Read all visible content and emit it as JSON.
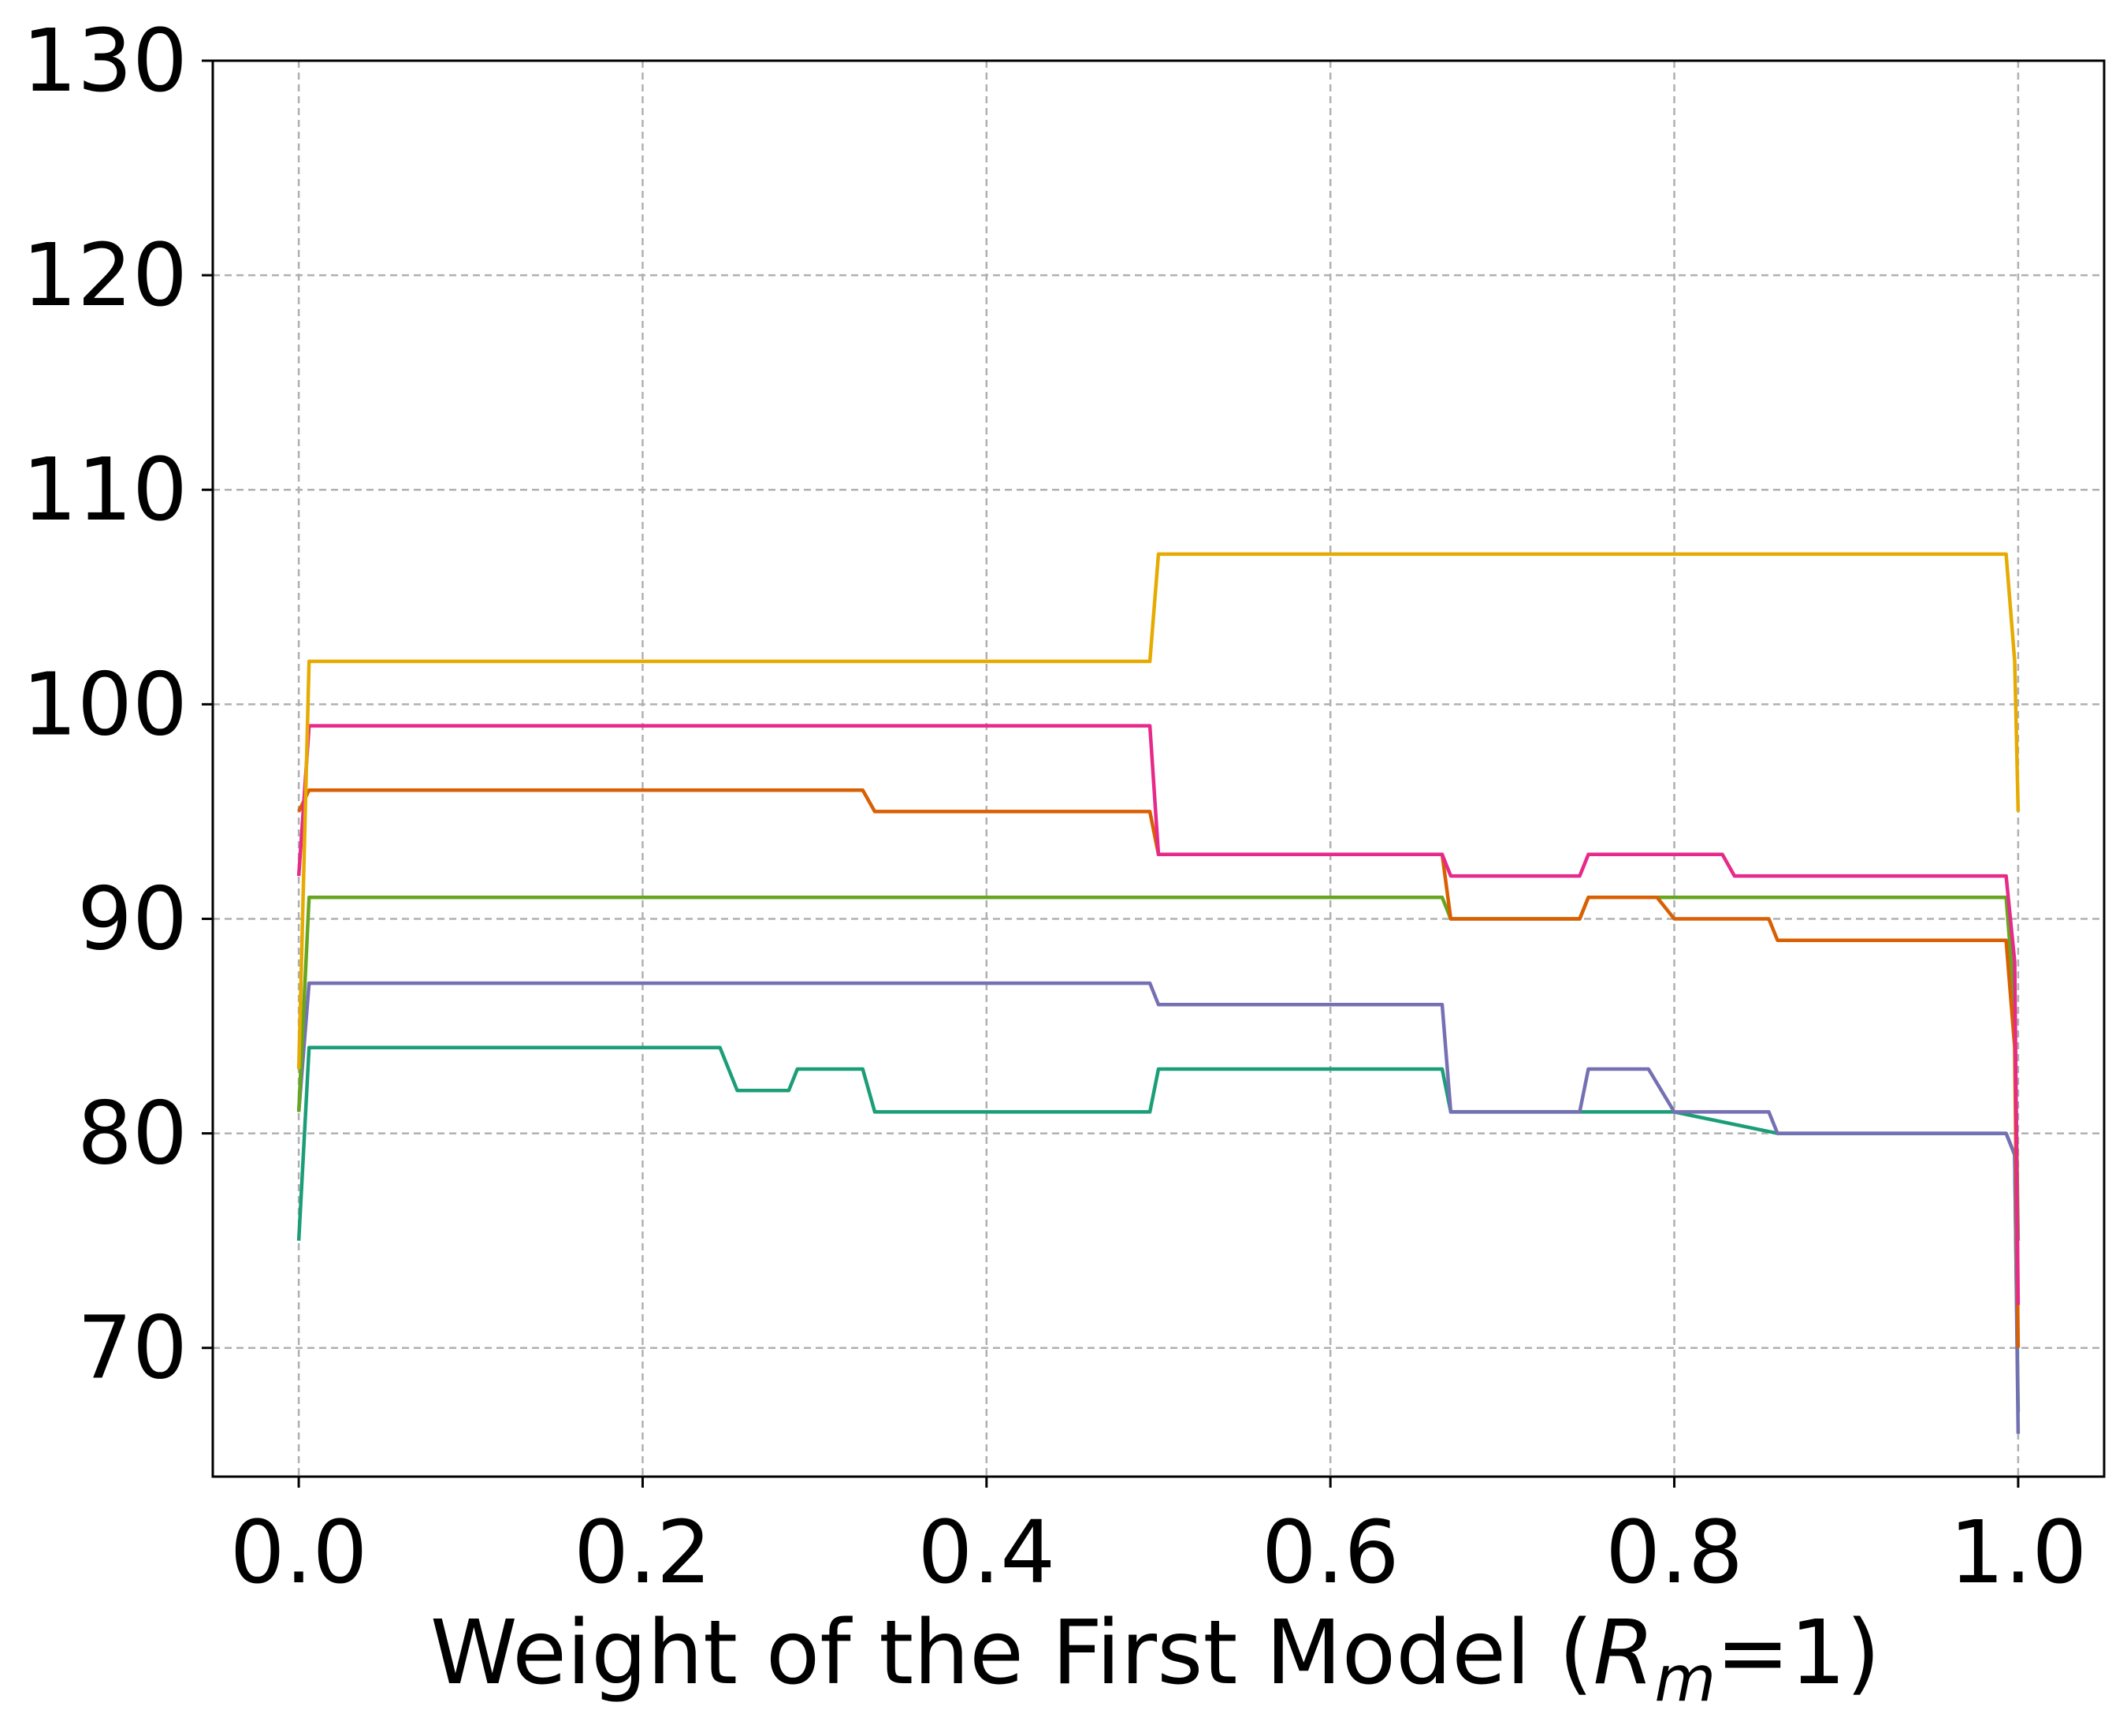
{
  "chart_data": {
    "type": "line",
    "title": "",
    "xlabel_parts": [
      "Weight of the First Model (",
      "R",
      "m",
      "=1)"
    ],
    "ylabel": "",
    "xlim": [
      -0.05,
      1.05
    ],
    "ylim": [
      64,
      130
    ],
    "xticks": [
      0.0,
      0.2,
      0.4,
      0.6,
      0.8,
      1.0
    ],
    "xtick_labels": [
      "0.0",
      "0.2",
      "0.4",
      "0.6",
      "0.8",
      "1.0"
    ],
    "yticks": [
      70,
      80,
      90,
      100,
      110,
      120,
      130
    ],
    "ytick_labels": [
      "70",
      "80",
      "90",
      "100",
      "110",
      "120",
      "130"
    ],
    "grid": true,
    "legend": "none",
    "series": [
      {
        "color": "#1b9e77",
        "points": [
          [
            0.0,
            75
          ],
          [
            0.006,
            84
          ],
          [
            0.245,
            84
          ],
          [
            0.255,
            82
          ],
          [
            0.285,
            82
          ],
          [
            0.29,
            83
          ],
          [
            0.328,
            83
          ],
          [
            0.335,
            81
          ],
          [
            0.495,
            81
          ],
          [
            0.5,
            83
          ],
          [
            0.665,
            83
          ],
          [
            0.67,
            81
          ],
          [
            0.8,
            81
          ],
          [
            0.86,
            80
          ],
          [
            0.993,
            80
          ],
          [
            0.998,
            79
          ],
          [
            1.0,
            67
          ]
        ]
      },
      {
        "color": "#7570b3",
        "points": [
          [
            0.0,
            81
          ],
          [
            0.006,
            87
          ],
          [
            0.495,
            87
          ],
          [
            0.5,
            86
          ],
          [
            0.665,
            86
          ],
          [
            0.67,
            81
          ],
          [
            0.745,
            81
          ],
          [
            0.75,
            83
          ],
          [
            0.785,
            83
          ],
          [
            0.8,
            81
          ],
          [
            0.855,
            81
          ],
          [
            0.86,
            80
          ],
          [
            0.993,
            80
          ],
          [
            0.998,
            79
          ],
          [
            1.0,
            66
          ]
        ]
      },
      {
        "color": "#66a61e",
        "points": [
          [
            0.0,
            81
          ],
          [
            0.006,
            91
          ],
          [
            0.665,
            91
          ],
          [
            0.67,
            90
          ],
          [
            0.745,
            90
          ],
          [
            0.75,
            91
          ],
          [
            0.993,
            91
          ],
          [
            0.998,
            86
          ],
          [
            1.0,
            75
          ]
        ]
      },
      {
        "color": "#d95f02",
        "points": [
          [
            0.0,
            95
          ],
          [
            0.006,
            96
          ],
          [
            0.328,
            96
          ],
          [
            0.335,
            95
          ],
          [
            0.495,
            95
          ],
          [
            0.5,
            93
          ],
          [
            0.665,
            93
          ],
          [
            0.67,
            90
          ],
          [
            0.745,
            90
          ],
          [
            0.75,
            91
          ],
          [
            0.79,
            91
          ],
          [
            0.8,
            90
          ],
          [
            0.855,
            90
          ],
          [
            0.86,
            89
          ],
          [
            0.993,
            89
          ],
          [
            0.998,
            84
          ],
          [
            1.0,
            70
          ]
        ]
      },
      {
        "color": "#e7298a",
        "points": [
          [
            0.0,
            92
          ],
          [
            0.006,
            99
          ],
          [
            0.495,
            99
          ],
          [
            0.5,
            93
          ],
          [
            0.665,
            93
          ],
          [
            0.67,
            92
          ],
          [
            0.745,
            92
          ],
          [
            0.75,
            93
          ],
          [
            0.828,
            93
          ],
          [
            0.835,
            92
          ],
          [
            0.993,
            92
          ],
          [
            0.998,
            88
          ],
          [
            1.0,
            72
          ]
        ]
      },
      {
        "color": "#e6ab02",
        "points": [
          [
            0.0,
            83
          ],
          [
            0.006,
            102
          ],
          [
            0.495,
            102
          ],
          [
            0.5,
            107
          ],
          [
            0.993,
            107
          ],
          [
            0.998,
            102
          ],
          [
            1.0,
            95
          ]
        ]
      }
    ]
  }
}
